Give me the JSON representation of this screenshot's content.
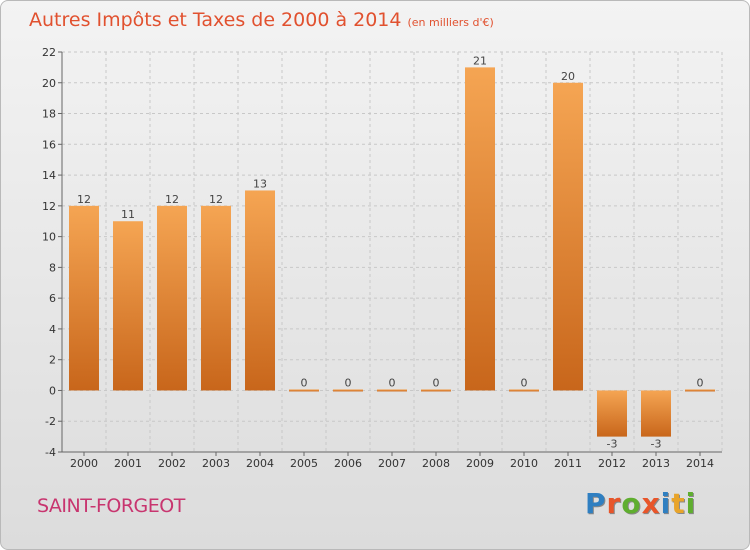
{
  "header": {
    "title": "Autres Impôts et Taxes de 2000 à 2014",
    "unit": "(en milliers d'€)"
  },
  "footer": {
    "commune": "SAINT-FORGEOT",
    "logo_text": "Proxiti"
  },
  "colors": {
    "title": "#e1512f",
    "commune": "#c8356f",
    "bar_top": "#f5a553",
    "bar_bottom": "#c8661b",
    "logo": [
      "#2f7fc1",
      "#e8552a",
      "#5fae2f",
      "#e8552a",
      "#2f7fc1",
      "#e8a42a",
      "#5fae2f"
    ]
  },
  "chart_data": {
    "type": "bar",
    "title": "Autres Impôts et Taxes de 2000 à 2014",
    "xlabel": "",
    "ylabel": "",
    "categories": [
      "2000",
      "2001",
      "2002",
      "2003",
      "2004",
      "2005",
      "2006",
      "2007",
      "2008",
      "2009",
      "2010",
      "2011",
      "2012",
      "2013",
      "2014"
    ],
    "values": [
      12,
      11,
      12,
      12,
      13,
      0,
      0,
      0,
      0,
      21,
      0,
      20,
      -3,
      -3,
      0
    ],
    "ylim": [
      -4,
      22
    ],
    "yticks": [
      -4,
      -2,
      0,
      2,
      4,
      6,
      8,
      10,
      12,
      14,
      16,
      18,
      20,
      22
    ],
    "grid": true,
    "legend": "none"
  }
}
